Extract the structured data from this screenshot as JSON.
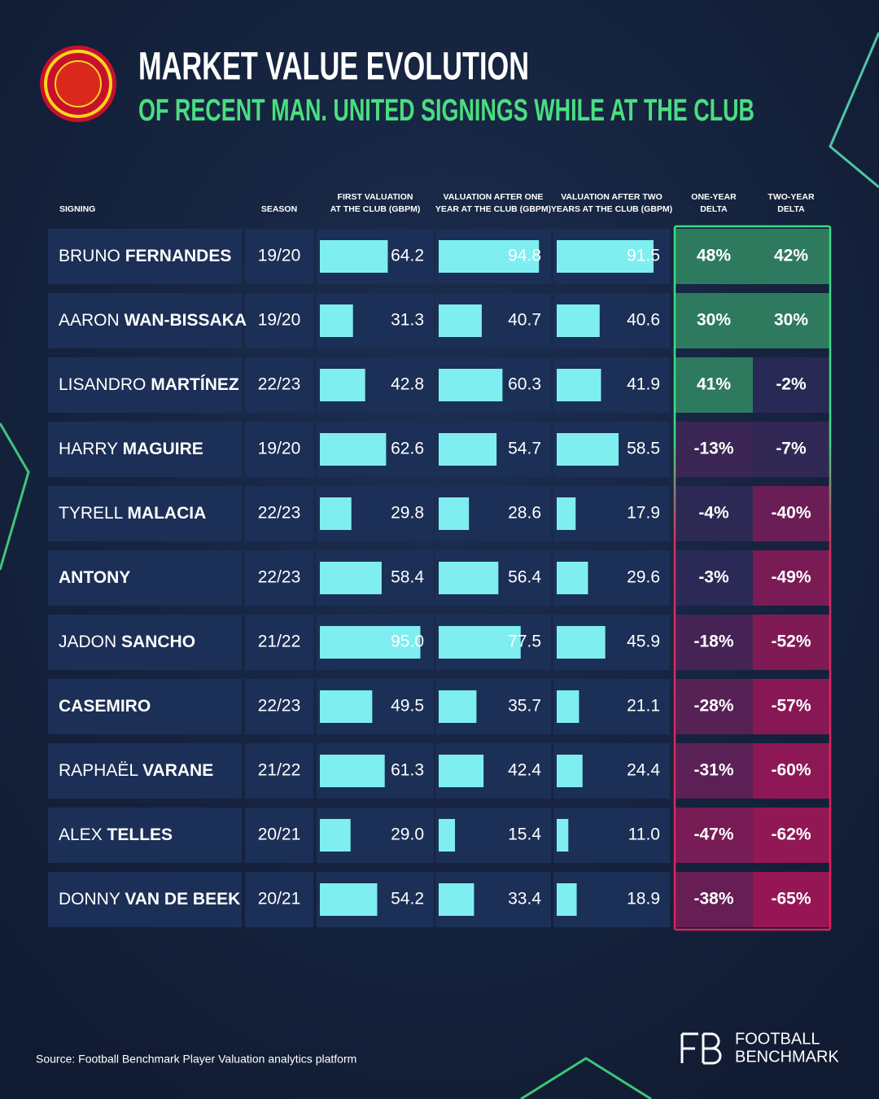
{
  "header": {
    "title": "MARKET VALUE EVOLUTION",
    "subtitle": "OF RECENT MAN. UNITED SIGNINGS WHILE AT THE CLUB"
  },
  "table": {
    "columns": [
      [
        "SIGNING"
      ],
      [
        "SEASON"
      ],
      [
        "FIRST VALUATION",
        "AT THE CLUB (GBPM)"
      ],
      [
        "VALUATION AFTER ONE",
        "YEAR AT THE CLUB (GBPM)"
      ],
      [
        "VALUATION AFTER TWO",
        "YEARS AT THE CLUB (GBPM)"
      ],
      [
        "ONE-YEAR",
        "DELTA"
      ],
      [
        "TWO-YEAR",
        "DELTA"
      ]
    ],
    "rows": [
      {
        "first_name": "BRUNO",
        "last_name": "FERNANDES",
        "season": "19/20",
        "first_valuation": "64.2",
        "after_one_year": "94.8",
        "after_two_years": "91.5",
        "one_year_delta": "48%",
        "two_year_delta": "42%"
      },
      {
        "first_name": "AARON",
        "last_name": "WAN-BISSAKA",
        "season": "19/20",
        "first_valuation": "31.3",
        "after_one_year": "40.7",
        "after_two_years": "40.6",
        "one_year_delta": "30%",
        "two_year_delta": "30%"
      },
      {
        "first_name": "LISANDRO",
        "last_name": "MARTÍNEZ",
        "season": "22/23",
        "first_valuation": "42.8",
        "after_one_year": "60.3",
        "after_two_years": "41.9",
        "one_year_delta": "41%",
        "two_year_delta": "-2%"
      },
      {
        "first_name": "HARRY",
        "last_name": "MAGUIRE",
        "season": "19/20",
        "first_valuation": "62.6",
        "after_one_year": "54.7",
        "after_two_years": "58.5",
        "one_year_delta": "-13%",
        "two_year_delta": "-7%"
      },
      {
        "first_name": "TYRELL",
        "last_name": "MALACIA",
        "season": "22/23",
        "first_valuation": "29.8",
        "after_one_year": "28.6",
        "after_two_years": "17.9",
        "one_year_delta": "-4%",
        "two_year_delta": "-40%"
      },
      {
        "last_name": "ANTONY",
        "season": "22/23",
        "first_valuation": "58.4",
        "after_one_year": "56.4",
        "after_two_years": "29.6",
        "one_year_delta": "-3%",
        "two_year_delta": "-49%"
      },
      {
        "first_name": "JADON",
        "last_name": "SANCHO",
        "season": "21/22",
        "first_valuation": "95.0",
        "after_one_year": "77.5",
        "after_two_years": "45.9",
        "one_year_delta": "-18%",
        "two_year_delta": "-52%"
      },
      {
        "last_name": "CASEMIRO",
        "season": "22/23",
        "first_valuation": "49.5",
        "after_one_year": "35.7",
        "after_two_years": "21.1",
        "one_year_delta": "-28%",
        "two_year_delta": "-57%"
      },
      {
        "first_name": "RAPHAËL",
        "last_name": "VARANE",
        "season": "21/22",
        "first_valuation": "61.3",
        "after_one_year": "42.4",
        "after_two_years": "24.4",
        "one_year_delta": "-31%",
        "two_year_delta": "-60%"
      },
      {
        "first_name": "ALEX",
        "last_name": "TELLES",
        "season": "20/21",
        "first_valuation": "29.0",
        "after_one_year": "15.4",
        "after_two_years": "11.0",
        "one_year_delta": "-47%",
        "two_year_delta": "-62%"
      },
      {
        "first_name": "DONNY",
        "last_name": "VAN DE BEEK",
        "season": "20/21",
        "first_valuation": "54.2",
        "after_one_year": "33.4",
        "after_two_years": "18.9",
        "one_year_delta": "-38%",
        "two_year_delta": "-65%"
      }
    ]
  },
  "footer": {
    "source": "Source: Football Benchmark Player Valuation analytics platform",
    "brand": [
      "FOOTBALL",
      "BENCHMARK"
    ]
  }
}
